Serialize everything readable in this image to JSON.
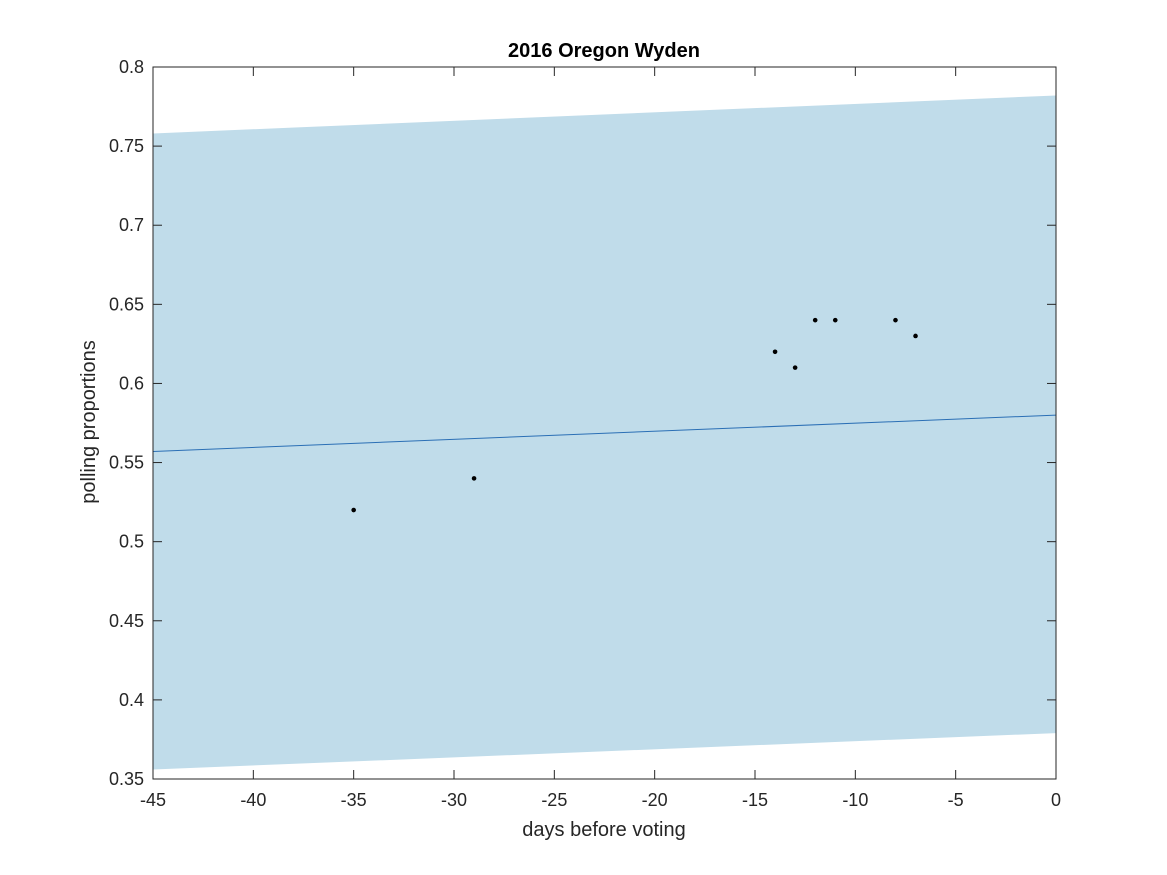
{
  "chart_data": {
    "type": "scatter",
    "title": "2016 Oregon Wyden",
    "xlabel": "days before voting",
    "ylabel": "polling proportions",
    "xlim": [
      -45,
      0
    ],
    "ylim": [
      0.35,
      0.8
    ],
    "xticks": [
      "-45",
      "-40",
      "-35",
      "-30",
      "-25",
      "-20",
      "-15",
      "-10",
      "-5",
      "0"
    ],
    "yticks": [
      "0.35",
      "0.4",
      "0.45",
      "0.5",
      "0.55",
      "0.6",
      "0.65",
      "0.7",
      "0.75",
      "0.8"
    ],
    "grid": false,
    "legend": "none",
    "band": {
      "x": [
        -45,
        0
      ],
      "upper": [
        0.758,
        0.782
      ],
      "lower": [
        0.356,
        0.379
      ],
      "color": "#c0dcea"
    },
    "trend": {
      "x": [
        -45,
        0
      ],
      "y": [
        0.557,
        0.58
      ],
      "color": "#2b6fb5"
    },
    "points": {
      "x": [
        -35,
        -29,
        -14,
        -13,
        -12,
        -11,
        -8,
        -7
      ],
      "y": [
        0.52,
        0.54,
        0.62,
        0.61,
        0.64,
        0.64,
        0.64,
        0.63
      ],
      "color": "#000000"
    }
  }
}
